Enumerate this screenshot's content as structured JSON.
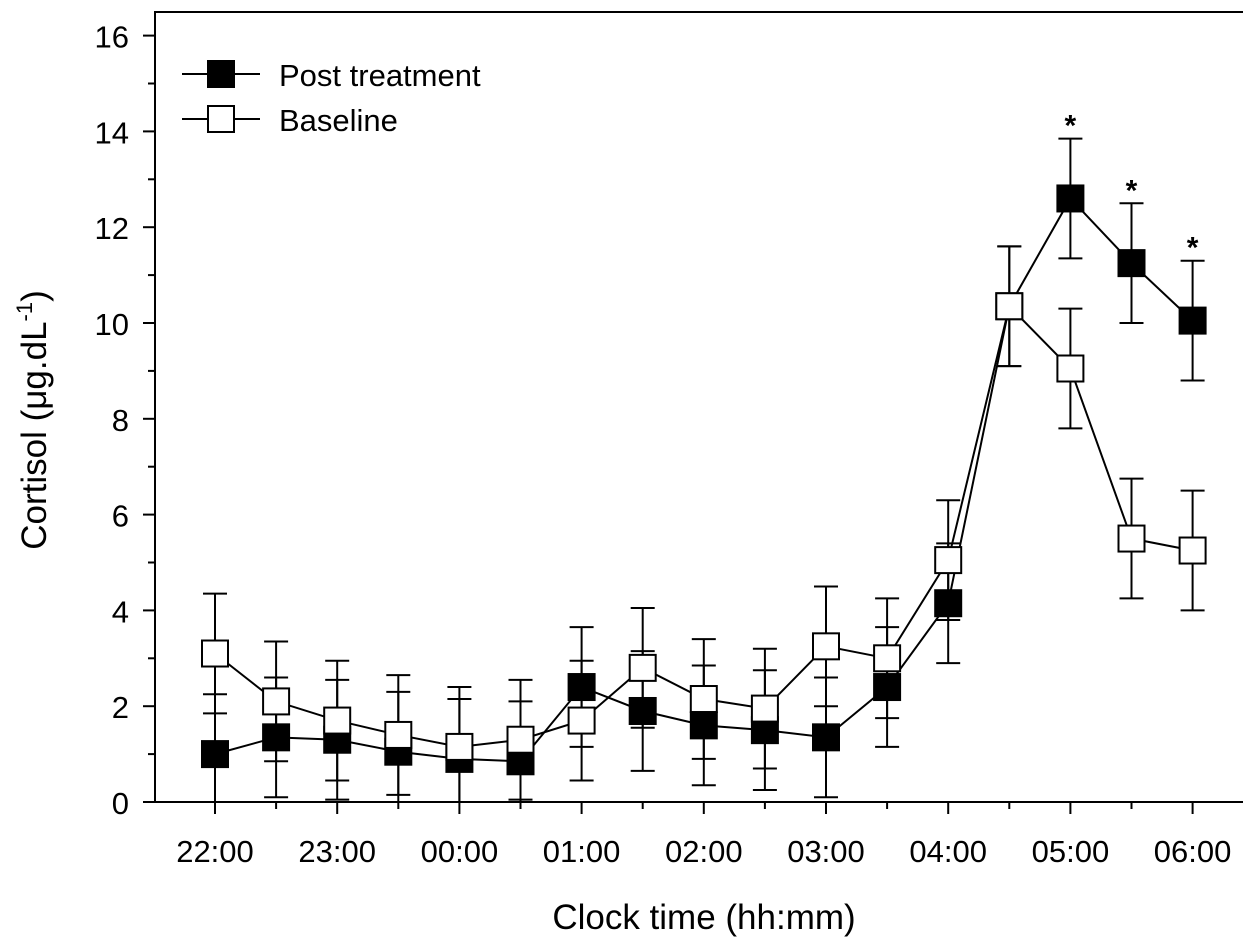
{
  "chart_data": {
    "type": "line",
    "xlabel": "Clock time (hh:mm)",
    "ylabel_main": "Cortisol (μg.dL",
    "ylabel_sup": "-1",
    "ylabel_close": ")",
    "ylim": [
      0,
      16
    ],
    "y_ticks": [
      0,
      2,
      4,
      6,
      8,
      10,
      12,
      14,
      16
    ],
    "x_labels": [
      "22:00",
      "23:00",
      "00:00",
      "01:00",
      "02:00",
      "03:00",
      "04:00",
      "05:00",
      "06:00"
    ],
    "x_points": [
      "22:00",
      "22:30",
      "23:00",
      "23:30",
      "00:00",
      "00:30",
      "01:00",
      "01:30",
      "02:00",
      "02:30",
      "03:00",
      "03:30",
      "04:00",
      "04:30",
      "05:00",
      "05:30",
      "06:00"
    ],
    "grid": false,
    "legend_position": "top-left",
    "series": [
      {
        "name": "Post treatment",
        "marker": "filled-square",
        "color": "#000000",
        "values": [
          1.0,
          1.35,
          1.3,
          1.05,
          0.9,
          0.85,
          2.4,
          1.9,
          1.6,
          1.5,
          1.35,
          2.4,
          4.15,
          10.35,
          12.6,
          11.25,
          10.05
        ],
        "errors": [
          1.25,
          1.25,
          1.25,
          1.25,
          1.25,
          1.25,
          1.25,
          1.25,
          1.25,
          1.25,
          1.25,
          1.25,
          1.25,
          1.25,
          1.25,
          1.25,
          1.25
        ]
      },
      {
        "name": "Baseline",
        "marker": "open-square",
        "color": "#000000",
        "values": [
          3.1,
          2.1,
          1.7,
          1.4,
          1.15,
          1.3,
          1.7,
          2.8,
          2.15,
          1.95,
          3.25,
          3.0,
          5.05,
          10.35,
          9.05,
          5.5,
          5.25
        ],
        "errors": [
          1.25,
          1.25,
          1.25,
          1.25,
          1.25,
          1.25,
          1.25,
          1.25,
          1.25,
          1.25,
          1.25,
          1.25,
          1.25,
          1.25,
          1.25,
          1.25,
          1.25
        ]
      }
    ],
    "annotations": [
      {
        "text": "*",
        "x": "05:00"
      },
      {
        "text": "*",
        "x": "05:30"
      },
      {
        "text": "*",
        "x": "06:00"
      }
    ]
  }
}
